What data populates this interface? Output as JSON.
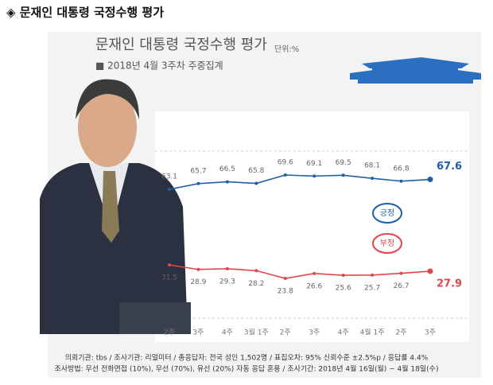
{
  "header": "◈ 문재인 대통령 국정수행 평가",
  "chart_data": {
    "type": "line",
    "title": "문재인 대통령 국정수행 평가",
    "unit": "단위:%",
    "subtitle": "■ 2018년 4월 3주차 주중집계",
    "categories": [
      "2주",
      "3주",
      "4주",
      "3월 1주",
      "2주",
      "3주",
      "4주",
      "4월 1주",
      "2주",
      "3주"
    ],
    "series": [
      {
        "name": "긍정",
        "color": "#1f5fa8",
        "values": [
          63.1,
          65.7,
          66.5,
          65.8,
          69.6,
          69.1,
          69.5,
          68.1,
          66.8,
          67.6
        ]
      },
      {
        "name": "부정",
        "color": "#e0474c",
        "values": [
          31.5,
          28.9,
          29.3,
          28.2,
          23.8,
          26.6,
          25.6,
          25.7,
          26.7,
          27.9
        ]
      }
    ],
    "notes": [
      "의뢰기관: tbs / 조사기관: 리얼미터 / 총응답자: 전국 성인 1,502명 / 표집오차: 95% 신뢰수준 ±2.5%p / 응답률 4.4%",
      "조사방법: 무선 전화면접 (10%), 무선 (70%), 유선 (20%) 자동 응답 혼용 / 조사기간: 2018년 4월 16일(월) ~ 4월 18일(수)"
    ]
  }
}
